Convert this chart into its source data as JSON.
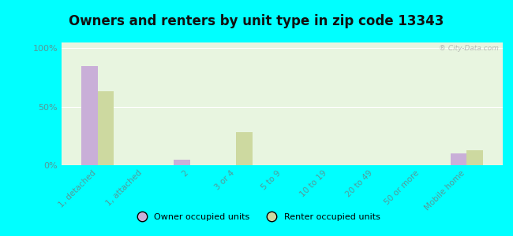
{
  "title": "Owners and renters by unit type in zip code 13343",
  "categories": [
    "1, detached",
    "1, attached",
    "2",
    "3 or 4",
    "5 to 9",
    "10 to 19",
    "20 to 49",
    "50 or more",
    "Mobile home"
  ],
  "owner_values": [
    85,
    0,
    5,
    0,
    0,
    0,
    0,
    0,
    10
  ],
  "renter_values": [
    63,
    0,
    0,
    28,
    0,
    0,
    0,
    0,
    13
  ],
  "owner_color": "#c9afd8",
  "renter_color": "#cdd9a0",
  "plot_bg": "#e8f5e0",
  "outer_bg": "#00ffff",
  "ylim": [
    0,
    105
  ],
  "yticks": [
    0,
    50,
    100
  ],
  "ytick_labels": [
    "0%",
    "50%",
    "100%"
  ],
  "bar_width": 0.35,
  "legend_owner": "Owner occupied units",
  "legend_renter": "Renter occupied units",
  "watermark": "® City-Data.com",
  "tick_color": "#559999",
  "title_fontsize": 12,
  "label_fontsize": 7.5
}
